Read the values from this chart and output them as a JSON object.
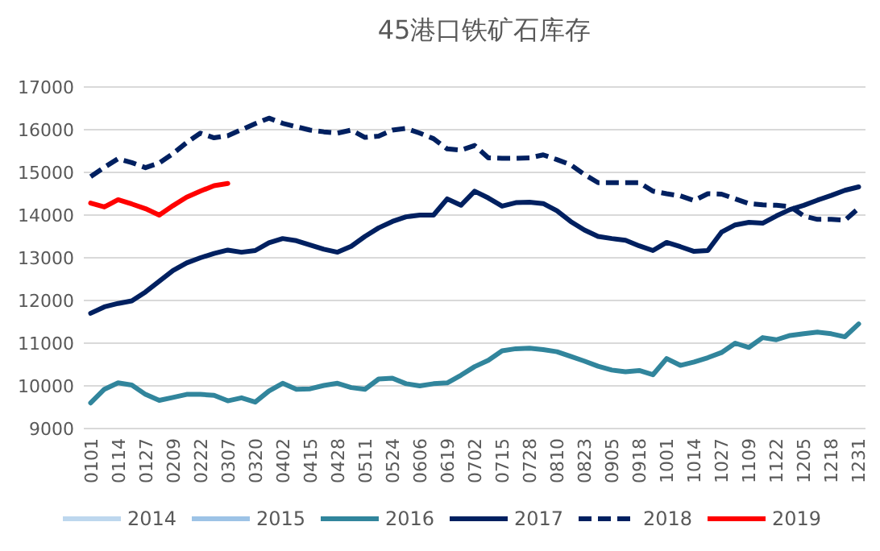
{
  "chart_data": {
    "type": "line",
    "title": "45港口铁矿石库存",
    "categories": [
      "0101",
      null,
      "0114",
      null,
      "0127",
      null,
      "0209",
      null,
      "0222",
      null,
      "0307",
      null,
      "0320",
      null,
      "0402",
      null,
      "0415",
      null,
      "0428",
      null,
      "0511",
      null,
      "0524",
      null,
      "0606",
      null,
      "0619",
      null,
      "0702",
      null,
      "0715",
      null,
      "0728",
      null,
      "0810",
      null,
      "0823",
      null,
      "0905",
      null,
      "0918",
      null,
      "1001",
      null,
      "1014",
      null,
      "1027",
      null,
      "1109",
      null,
      "1122",
      null,
      "1205",
      null,
      "1218",
      null,
      "1231"
    ],
    "ylim": [
      9000,
      17000
    ],
    "yticks": [
      9000,
      10000,
      11000,
      12000,
      13000,
      14000,
      15000,
      16000,
      17000
    ],
    "grid": "y",
    "legend": "bottom",
    "marker": "none",
    "line_style": "solid",
    "series": [
      {
        "name": "2014",
        "color": "#bdd7ee",
        "values": [
          null,
          null,
          null,
          null,
          null,
          null,
          null,
          null,
          null,
          null,
          null,
          null,
          null,
          null,
          null,
          null,
          null,
          null,
          null,
          null,
          null,
          null,
          null,
          null,
          null,
          null,
          null,
          null,
          null,
          null,
          null,
          null,
          null,
          null,
          null,
          null,
          null,
          null,
          null,
          null,
          null,
          null,
          null,
          null,
          null,
          null,
          null,
          null,
          null,
          null,
          null,
          null,
          null,
          null,
          null,
          null,
          null
        ]
      },
      {
        "name": "2015",
        "color": "#9dc3e6",
        "values": [
          null,
          null,
          null,
          null,
          null,
          null,
          null,
          null,
          null,
          null,
          null,
          null,
          null,
          null,
          null,
          null,
          null,
          null,
          null,
          null,
          null,
          null,
          null,
          null,
          null,
          null,
          null,
          null,
          null,
          null,
          null,
          null,
          null,
          null,
          null,
          null,
          null,
          null,
          null,
          null,
          null,
          null,
          null,
          null,
          null,
          null,
          null,
          null,
          null,
          null,
          null,
          null,
          null,
          null,
          null,
          null,
          null
        ]
      },
      {
        "name": "2016",
        "color": "#31859c",
        "values": [
          9600,
          9920,
          10070,
          10020,
          9800,
          9660,
          9730,
          9800,
          9800,
          9780,
          9650,
          9720,
          9620,
          9880,
          10060,
          9920,
          9930,
          10010,
          10060,
          9960,
          9920,
          10160,
          10180,
          10050,
          10000,
          10050,
          10070,
          10250,
          10450,
          10600,
          10820,
          10870,
          10880,
          10850,
          10800,
          10690,
          10580,
          10460,
          10370,
          10330,
          10360,
          10260,
          10640,
          10480,
          10560,
          10660,
          10780,
          11000,
          10900,
          11130,
          11080,
          11180,
          11220,
          11260,
          11220,
          11150,
          11450
        ]
      },
      {
        "name": "2017",
        "color": "#002060",
        "values": [
          11700,
          11850,
          11930,
          11990,
          12200,
          12450,
          12700,
          12880,
          13000,
          13100,
          13180,
          13130,
          13170,
          13350,
          13450,
          13400,
          13300,
          13200,
          13130,
          13270,
          13500,
          13700,
          13850,
          13960,
          14000,
          14000,
          14380,
          14230,
          14560,
          14400,
          14210,
          14290,
          14300,
          14270,
          14100,
          13850,
          13650,
          13500,
          13450,
          13410,
          13280,
          13170,
          13360,
          13260,
          13150,
          13170,
          13600,
          13770,
          13830,
          13810,
          13980,
          14130,
          14230,
          14350,
          14460,
          14580,
          14660
        ]
      },
      {
        "name": "2018",
        "color": "#002060",
        "line_style": "dashed",
        "values": [
          14900,
          15120,
          15320,
          15230,
          15110,
          15220,
          15440,
          15700,
          15920,
          15810,
          15860,
          16000,
          16140,
          16270,
          16150,
          16070,
          15990,
          15950,
          15920,
          15990,
          15820,
          15850,
          15990,
          16030,
          15920,
          15790,
          15550,
          15520,
          15630,
          15340,
          15330,
          15330,
          15340,
          15410,
          15300,
          15180,
          14950,
          14760,
          14760,
          14760,
          14760,
          14560,
          14500,
          14450,
          14340,
          14500,
          14490,
          14380,
          14270,
          14240,
          14230,
          14200,
          13980,
          13900,
          13900,
          13880,
          14160
        ]
      },
      {
        "name": "2019",
        "color": "#ff0000",
        "values": [
          14280,
          14190,
          14360,
          14260,
          14150,
          14000,
          14220,
          14420,
          14560,
          14690,
          14740,
          null,
          null,
          null,
          null,
          null,
          null,
          null,
          null,
          null,
          null,
          null,
          null,
          null,
          null,
          null,
          null,
          null,
          null,
          null,
          null,
          null,
          null,
          null,
          null,
          null,
          null,
          null,
          null,
          null,
          null,
          null,
          null,
          null,
          null,
          null,
          null,
          null,
          null,
          null,
          null,
          null,
          null,
          null,
          null,
          null,
          null
        ]
      }
    ]
  }
}
